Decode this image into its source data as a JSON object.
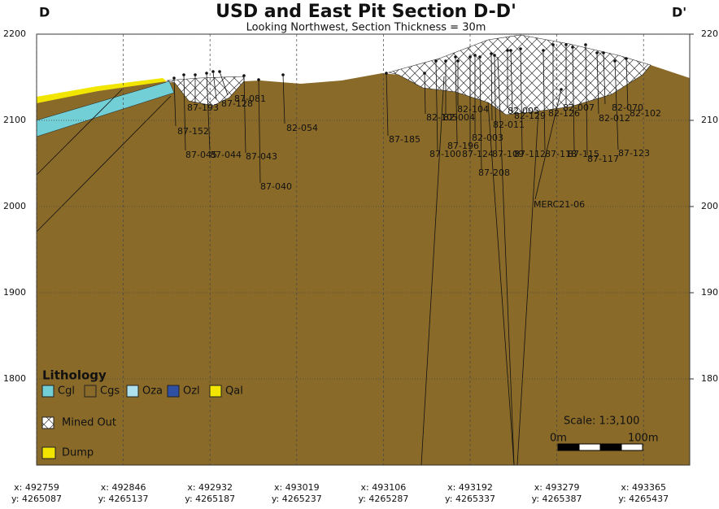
{
  "header": {
    "title": "USD and East Pit Section D-D'",
    "subtitle": "Looking Northwest, Section Thickness = 30m",
    "left_end": "D",
    "right_end": "D'"
  },
  "elevation_axis": {
    "ylim": [
      1700,
      2200
    ],
    "yticks": [
      2200,
      2100,
      2000,
      1900,
      1800
    ]
  },
  "right_axis": {
    "ylim": [
      170,
      220
    ],
    "yticks": [
      220,
      210,
      200,
      190,
      180
    ]
  },
  "coordinates": [
    {
      "x": "x: 492759",
      "y": "y: 4265087"
    },
    {
      "x": "x: 492846",
      "y": "y: 4265137"
    },
    {
      "x": "x: 492932",
      "y": "y: 4265187"
    },
    {
      "x": "x: 493019",
      "y": "y: 4265237"
    },
    {
      "x": "x: 493106",
      "y": "y: 4265287"
    },
    {
      "x": "x: 493192",
      "y": "y: 4265337"
    },
    {
      "x": "x: 493279",
      "y": "y: 4265387"
    },
    {
      "x": "x: 493365",
      "y": "y: 4265437"
    }
  ],
  "drill_holes": [
    "87-152",
    "87-045",
    "87-044",
    "87-043",
    "87-040",
    "82-054",
    "87-193",
    "87-128",
    "87-081",
    "87-185",
    "82-105",
    "82-004",
    "82-104",
    "87-100",
    "87-196",
    "82-003",
    "87-124",
    "82-011",
    "87-208",
    "87-109",
    "82-005",
    "82-129",
    "87-112",
    "87-118",
    "82-126",
    "82-007",
    "87-115",
    "87-117",
    "82-012",
    "82-070",
    "82-102",
    "87-123",
    "MERC21-06"
  ],
  "legend": {
    "title": "Lithology",
    "items": [
      {
        "name": "Cgl",
        "color": "#72cfd6"
      },
      {
        "name": "Cgs",
        "color": "#8a6a28"
      },
      {
        "name": "Oza",
        "color": "#aee0ee"
      },
      {
        "name": "Ozl",
        "color": "#2f4fa3"
      },
      {
        "name": "Qal",
        "color": "#f2e600"
      }
    ],
    "mined_out": "Mined Out",
    "dump": "Dump"
  },
  "scale": {
    "label": "Scale: 1:3,100",
    "start": "0m",
    "end": "100m"
  }
}
